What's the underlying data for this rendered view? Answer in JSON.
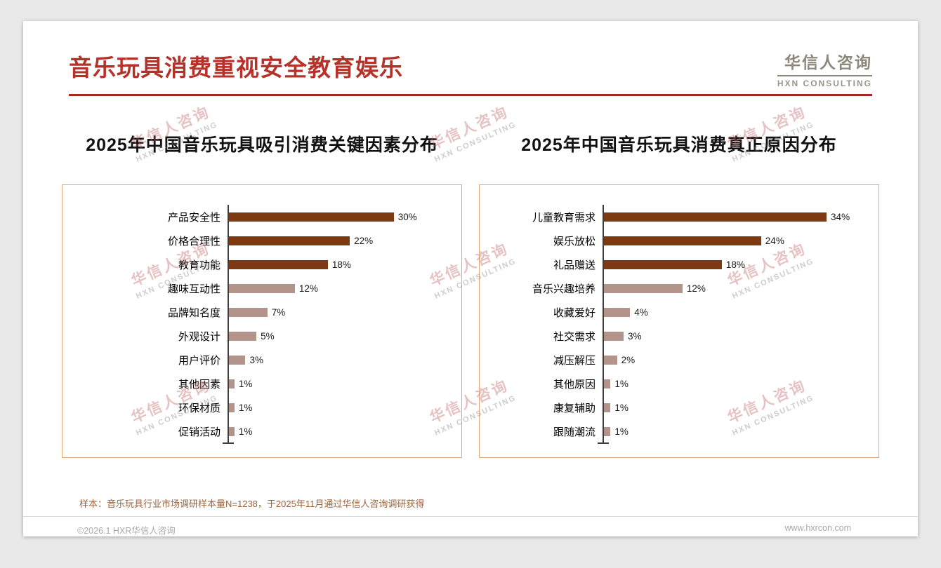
{
  "page": {
    "title": "音乐玩具消费重视安全教育娱乐",
    "logo": {
      "cn": "华信人咨询",
      "en": "HXN CONSULTING"
    },
    "watermark": {
      "cn": "华信人咨询",
      "en": "HXN CONSULTING"
    },
    "footnote": "样本：音乐玩具行业市场调研样本量N=1238，于2025年11月通过华信人咨询调研获得",
    "footer": {
      "copyright": "©2026.1 HXR华信人咨询",
      "website": "www.hxrcon.com"
    },
    "colors": {
      "title_red": "#b5322a",
      "rule_red": "#a32a1f",
      "bar_dark": "#7d3a12",
      "bar_light": "#b2948a",
      "box_border": "#e2a878",
      "footnote_brown": "#9a6440"
    }
  },
  "chart_data": [
    {
      "type": "bar",
      "orientation": "horizontal",
      "title": "2025年中国音乐玩具吸引消费关键因素分布",
      "categories": [
        "产品安全性",
        "价格合理性",
        "教育功能",
        "趣味互动性",
        "品牌知名度",
        "外观设计",
        "用户评价",
        "其他因素",
        "环保材质",
        "促销活动"
      ],
      "values": [
        30,
        22,
        18,
        12,
        7,
        5,
        3,
        1,
        1,
        1
      ],
      "unit": "%",
      "xlim": [
        0,
        40
      ],
      "highlight_top": 3,
      "grid": false,
      "legend": false
    },
    {
      "type": "bar",
      "orientation": "horizontal",
      "title": "2025年中国音乐玩具消费真正原因分布",
      "categories": [
        "儿童教育需求",
        "娱乐放松",
        "礼品赠送",
        "音乐兴趣培养",
        "收藏爱好",
        "社交需求",
        "减压解压",
        "其他原因",
        "康复辅助",
        "跟随潮流"
      ],
      "values": [
        34,
        24,
        18,
        12,
        4,
        3,
        2,
        1,
        1,
        1
      ],
      "unit": "%",
      "xlim": [
        0,
        40
      ],
      "highlight_top": 3,
      "grid": false,
      "legend": false
    }
  ]
}
